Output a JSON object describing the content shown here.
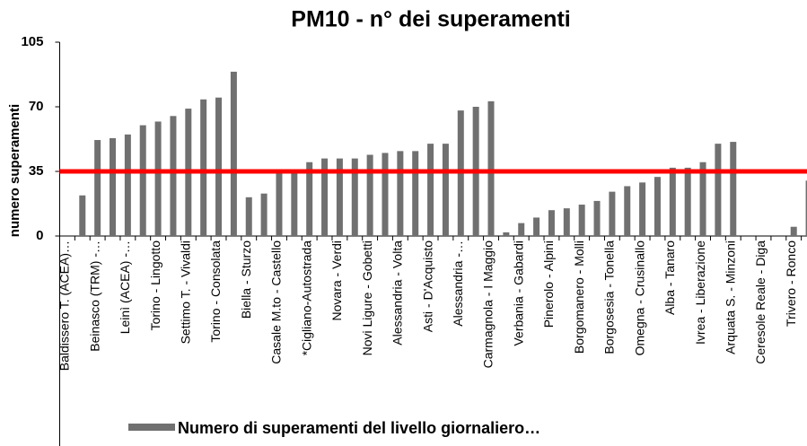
{
  "chart_data": {
    "type": "bar",
    "title": "PM10 - n° dei superamenti",
    "y_label": "numero superamenti",
    "categories": [
      "Baldissero T. (ACEA)…",
      null,
      "Beinasco (TRM) -…",
      null,
      "Leinì (ACEA) -…",
      null,
      "Torino - Lingotto",
      null,
      "Settimo T. - Vivaldi",
      null,
      "Torino - Consolata",
      null,
      "Biella - Sturzo",
      null,
      "Casale M.to - Castello",
      null,
      "*Cigliano-Autostrada",
      null,
      "Novara - Verdi",
      null,
      "Novi Ligure - Gobetti",
      null,
      "Alessandria - Volta",
      null,
      "Asti - D'Acquisto",
      null,
      "Alessandria -…",
      null,
      "Carmagnola - I Maggio",
      null,
      "Verbania - Gabardi",
      null,
      "Pinerolo - Alpini",
      null,
      "Borgomanero - Molli",
      null,
      "Borgosesia - Tonella",
      null,
      "Omegna - Crusinallo",
      null,
      "Alba - Tanaro",
      null,
      "Ivrea - Liberazione",
      null,
      "Arquata S. - Minzoni",
      null,
      "Ceresole Reale - Diga",
      null,
      "Trivero - Ronco",
      null
    ],
    "series": [
      {
        "name": "Numero di superamenti del livello giornaliero…",
        "color": "#707070",
        "values": [
          0,
          22,
          52,
          53,
          55,
          60,
          62,
          65,
          69,
          74,
          75,
          89,
          21,
          23,
          36,
          36,
          40,
          42,
          42,
          42,
          44,
          45,
          46,
          46,
          50,
          50,
          68,
          70,
          73,
          2,
          7,
          10,
          14,
          15,
          17,
          19,
          24,
          27,
          29,
          32,
          37,
          37,
          40,
          50,
          51,
          0,
          0,
          0,
          5,
          30
        ]
      }
    ],
    "threshold": {
      "value": 35,
      "color": "#ff0000"
    },
    "ylim": [
      0,
      105
    ],
    "yticks": [
      0,
      35,
      70,
      105
    ],
    "legend": "bottom"
  }
}
